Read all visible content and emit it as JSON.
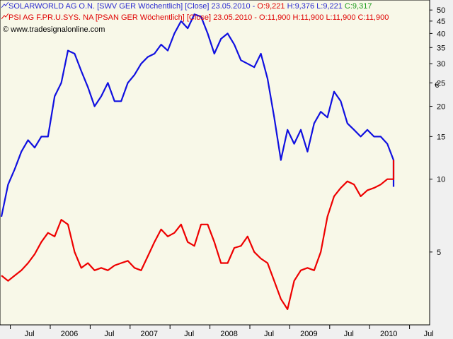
{
  "legend": [
    {
      "icon": "line-chart-icon",
      "name": "SOLARWORLD AG O.N. [SWV GER  Wöchentlich]",
      "field": "[Close]",
      "date": "23.05.2010",
      "o": "O:9,221",
      "h": "H:9,376",
      "l": "L:9,221",
      "c": "C:9,317",
      "color": "#2b2bd0"
    },
    {
      "icon": "line-chart-icon",
      "name": "PSI AG F.PR.U.SYS. NA [PSAN GER  Wöchentlich]",
      "field": "[Close]",
      "date": "23.05.2010",
      "o": "O:11,900",
      "h": "H:11,900",
      "l": "L:11,900",
      "c": "C:11,900",
      "color": "#e00000"
    }
  ],
  "copyright": "© www.tradesignalonline.com",
  "corner_label": "€",
  "chart_data": {
    "type": "line",
    "y_scale": "log",
    "ylim": [
      2.5,
      55
    ],
    "y_ticks": [
      "5",
      "10",
      "15",
      "20",
      "25",
      "30",
      "35",
      "40",
      "45",
      "50"
    ],
    "x_ticks": [
      "Jul",
      "2006",
      "Jul",
      "2007",
      "Jul",
      "2008",
      "Jul",
      "2009",
      "Jul",
      "2010",
      "Jul"
    ],
    "grid": false,
    "background": "#f8f8e8",
    "series": [
      {
        "name": "SOLARWORLD AG O.N.",
        "color": "#1010e0",
        "x": [
          "2005-03",
          "2005-04",
          "2005-05",
          "2005-06",
          "2005-07",
          "2005-08",
          "2005-09",
          "2005-10",
          "2005-11",
          "2005-12",
          "2006-01",
          "2006-02",
          "2006-03",
          "2006-04",
          "2006-05",
          "2006-06",
          "2006-07",
          "2006-08",
          "2006-09",
          "2006-10",
          "2006-11",
          "2006-12",
          "2007-01",
          "2007-02",
          "2007-03",
          "2007-04",
          "2007-05",
          "2007-06",
          "2007-07",
          "2007-08",
          "2007-09",
          "2007-10",
          "2007-11",
          "2007-12",
          "2008-01",
          "2008-02",
          "2008-03",
          "2008-04",
          "2008-05",
          "2008-06",
          "2008-07",
          "2008-08",
          "2008-09",
          "2008-10",
          "2008-11",
          "2008-12",
          "2009-01",
          "2009-02",
          "2009-03",
          "2009-04",
          "2009-05",
          "2009-06",
          "2009-07",
          "2009-08",
          "2009-09",
          "2009-10",
          "2009-11",
          "2009-12",
          "2010-01",
          "2010-02",
          "2010-03",
          "2010-04",
          "2010-05"
        ],
        "values": [
          7,
          9.5,
          11,
          13,
          14.5,
          13.5,
          15,
          15,
          22,
          25,
          34,
          33,
          28,
          24,
          20,
          22,
          25,
          21,
          21,
          25,
          27,
          30,
          32,
          33,
          36,
          34,
          40,
          45,
          42,
          48,
          47,
          40,
          33,
          38,
          40,
          36,
          31,
          30,
          29,
          33,
          26,
          18,
          12,
          16,
          14,
          16,
          13,
          17,
          19,
          18,
          23,
          21,
          17,
          16,
          15,
          16,
          15,
          15,
          14,
          12,
          10.5,
          11,
          9.3
        ]
      },
      {
        "name": "PSI AG F.PR.U.SYS. NA",
        "color": "#ee0000",
        "x": [
          "2005-03",
          "2005-04",
          "2005-05",
          "2005-06",
          "2005-07",
          "2005-08",
          "2005-09",
          "2005-10",
          "2005-11",
          "2005-12",
          "2006-01",
          "2006-02",
          "2006-03",
          "2006-04",
          "2006-05",
          "2006-06",
          "2006-07",
          "2006-08",
          "2006-09",
          "2006-10",
          "2006-11",
          "2006-12",
          "2007-01",
          "2007-02",
          "2007-03",
          "2007-04",
          "2007-05",
          "2007-06",
          "2007-07",
          "2007-08",
          "2007-09",
          "2007-10",
          "2007-11",
          "2007-12",
          "2008-01",
          "2008-02",
          "2008-03",
          "2008-04",
          "2008-05",
          "2008-06",
          "2008-07",
          "2008-08",
          "2008-09",
          "2008-10",
          "2008-11",
          "2008-12",
          "2009-01",
          "2009-02",
          "2009-03",
          "2009-04",
          "2009-05",
          "2009-06",
          "2009-07",
          "2009-08",
          "2009-09",
          "2009-10",
          "2009-11",
          "2009-12",
          "2010-01",
          "2010-02",
          "2010-03",
          "2010-04",
          "2010-05"
        ],
        "values": [
          4,
          3.8,
          4,
          4.2,
          4.5,
          4.9,
          5.5,
          6,
          5.8,
          6.8,
          6.5,
          5,
          4.3,
          4.5,
          4.2,
          4.3,
          4.2,
          4.4,
          4.5,
          4.6,
          4.3,
          4.2,
          4.8,
          5.5,
          6.2,
          5.8,
          6,
          6.5,
          5.5,
          5.3,
          6.5,
          6.5,
          5.5,
          4.5,
          4.5,
          5.2,
          5.3,
          5.8,
          5,
          4.7,
          4.5,
          3.8,
          3.2,
          2.9,
          3.8,
          4.2,
          4.3,
          4.2,
          5,
          7,
          8.5,
          9.2,
          9.8,
          9.5,
          8.5,
          9,
          9.2,
          9.5,
          10,
          10,
          10.2,
          11,
          12
        ]
      }
    ]
  }
}
